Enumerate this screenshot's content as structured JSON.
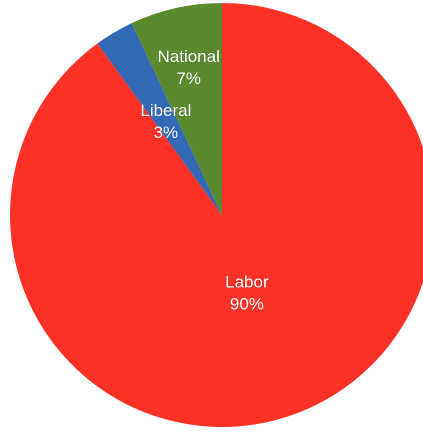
{
  "chart_data": {
    "type": "pie",
    "start_angle_deg": 0,
    "direction": "clockwise",
    "slices": [
      {
        "label": "Labor",
        "value": 90,
        "percent_label": "90%",
        "color": "#fe3126"
      },
      {
        "label": "Liberal",
        "value": 3,
        "percent_label": "3%",
        "color": "#3369b5"
      },
      {
        "label": "National",
        "value": 7,
        "percent_label": "7%",
        "color": "#5b8a2e"
      }
    ],
    "legend": "none"
  }
}
